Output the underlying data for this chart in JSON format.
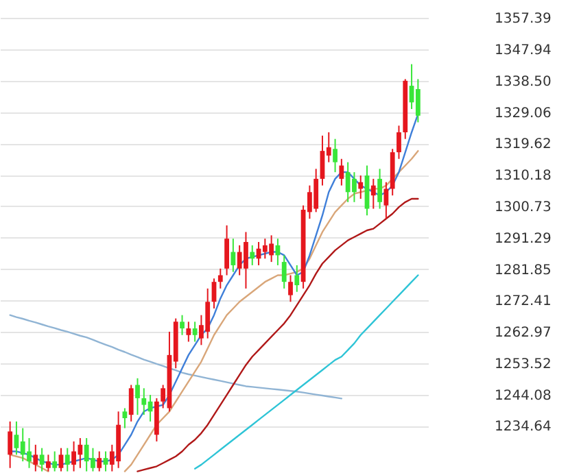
{
  "chart_data": {
    "type": "candlestick",
    "categories": [
      null,
      null,
      null,
      null,
      null,
      null,
      null,
      null,
      null,
      null,
      null,
      null,
      null,
      null,
      null,
      null,
      null,
      null,
      null,
      null,
      null,
      null,
      null,
      null,
      null,
      null,
      null,
      null,
      null,
      null,
      null,
      null,
      null,
      null,
      null,
      null,
      null,
      null,
      null,
      null,
      null,
      null,
      null,
      null,
      null,
      null,
      null,
      null,
      null,
      null,
      null,
      null,
      null,
      null,
      null,
      null,
      null,
      null,
      null,
      null,
      null,
      null,
      null,
      null,
      null
    ],
    "ohlc": [
      [
        1226,
        1236,
        1222,
        1233
      ],
      [
        1232,
        1236,
        1226,
        1228
      ],
      [
        1230,
        1234,
        1224,
        1226
      ],
      [
        1227,
        1231,
        1222,
        1224
      ],
      [
        1223,
        1229,
        1221,
        1226
      ],
      [
        1226,
        1228,
        1221,
        1223
      ],
      [
        1222,
        1226,
        1221,
        1224
      ],
      [
        1224,
        1227,
        1221,
        1222
      ],
      [
        1222,
        1228,
        1221,
        1226
      ],
      [
        1226,
        1228,
        1221,
        1223
      ],
      [
        1223,
        1230,
        1221,
        1227
      ],
      [
        1226,
        1231,
        1222,
        1229
      ],
      [
        1229,
        1231,
        1221,
        1224
      ],
      [
        1225,
        1228,
        1221,
        1222
      ],
      [
        1222,
        1227,
        1221,
        1225
      ],
      [
        1225,
        1227,
        1221,
        1223
      ],
      [
        1223,
        1229,
        1221,
        1227
      ],
      [
        1224,
        1239,
        1222,
        1235
      ],
      [
        1239,
        1240,
        1234,
        1237
      ],
      [
        1238,
        1247,
        1236,
        1246
      ],
      [
        1247,
        1249,
        1238,
        1243
      ],
      [
        1243,
        1246,
        1238,
        1241
      ],
      [
        1242,
        1244,
        1236,
        1239
      ],
      [
        1232,
        1243,
        1230,
        1242
      ],
      [
        1242,
        1247,
        1240,
        1246
      ],
      [
        1240,
        1263,
        1239,
        1256
      ],
      [
        1254,
        1267,
        1252,
        1266
      ],
      [
        1266,
        1268,
        1262,
        1264
      ],
      [
        1262,
        1266,
        1260,
        1264
      ],
      [
        1264,
        1266,
        1260,
        1262
      ],
      [
        1261,
        1268,
        1259,
        1265
      ],
      [
        1263,
        1276,
        1261,
        1272
      ],
      [
        1272,
        1279,
        1270,
        1278
      ],
      [
        1278,
        1282,
        1276,
        1280
      ],
      [
        1282,
        1295,
        1280,
        1291
      ],
      [
        1287,
        1291,
        1281,
        1283
      ],
      [
        1282,
        1289,
        1280,
        1287
      ],
      [
        1282,
        1293,
        1276,
        1290
      ],
      [
        1287,
        1289,
        1283,
        1285
      ],
      [
        1285,
        1290,
        1283,
        1288
      ],
      [
        1287,
        1291,
        1285,
        1289
      ],
      [
        1286,
        1292,
        1284,
        1289.5
      ],
      [
        1289,
        1291,
        1283,
        1286
      ],
      [
        1284,
        1286,
        1276,
        1278
      ],
      [
        1274,
        1280,
        1272,
        1278
      ],
      [
        1280,
        1283,
        1275,
        1277
      ],
      [
        1278,
        1301,
        1276,
        1299.7
      ],
      [
        1299,
        1307,
        1297,
        1305
      ],
      [
        1300,
        1312,
        1299,
        1309
      ],
      [
        1309,
        1322,
        1307,
        1317.4
      ],
      [
        1316,
        1323,
        1314,
        1318.5
      ],
      [
        1318,
        1321,
        1311,
        1314
      ],
      [
        1309,
        1315,
        1307,
        1313
      ],
      [
        1311,
        1314,
        1302,
        1305
      ],
      [
        1309,
        1311,
        1302,
        1305
      ],
      [
        1306,
        1310,
        1303,
        1308
      ],
      [
        1310,
        1313,
        1298,
        1300
      ],
      [
        1304,
        1309,
        1300,
        1307
      ],
      [
        1309,
        1312,
        1300,
        1302
      ],
      [
        1301,
        1308,
        1297,
        1306
      ],
      [
        1306,
        1318,
        1304,
        1317
      ],
      [
        1317,
        1325,
        1315,
        1323
      ],
      [
        1323,
        1339,
        1321,
        1338.5
      ],
      [
        1337,
        1343.5,
        1330,
        1332
      ],
      [
        1336,
        1339,
        1326,
        1328
      ]
    ],
    "colors": [
      "#e5171e",
      "#39e639",
      "#39e639",
      "#39e639",
      "#e5171e",
      "#39e639",
      "#e5171e",
      "#39e639",
      "#e5171e",
      "#39e639",
      "#e5171e",
      "#e5171e",
      "#39e639",
      "#39e639",
      "#e5171e",
      "#39e639",
      "#e5171e",
      "#e5171e",
      "#39e639",
      "#e5171e",
      "#39e639",
      "#39e639",
      "#39e639",
      "#e5171e",
      "#e5171e",
      "#e5171e",
      "#e5171e",
      "#39e639",
      "#e5171e",
      "#39e639",
      "#e5171e",
      "#e5171e",
      "#e5171e",
      "#e5171e",
      "#e5171e",
      "#39e639",
      "#e5171e",
      "#e5171e",
      "#39e639",
      "#e5171e",
      "#e5171e",
      "#e5171e",
      "#39e639",
      "#39e639",
      "#e5171e",
      "#39e639",
      "#e5171e",
      "#e5171e",
      "#e5171e",
      "#e5171e",
      "#e5171e",
      "#39e639",
      "#e5171e",
      "#39e639",
      "#39e639",
      "#e5171e",
      "#39e639",
      "#e5171e",
      "#39e639",
      "#e5171e",
      "#e5171e",
      "#e5171e",
      "#e5171e",
      "#39e639",
      "#39e639"
    ],
    "series": [
      {
        "type": "line",
        "color": "#90b4d4",
        "values": [
          1268,
          1267.4,
          1266.9,
          1266.3,
          1265.8,
          1265.2,
          1264.6,
          1264.1,
          1263.5,
          1263,
          1262.4,
          1261.8,
          1261.3,
          1260.6,
          1259.8,
          1259.1,
          1258.4,
          1257.6,
          1256.9,
          1256.1,
          1255.4,
          1254.6,
          1254,
          1253.3,
          1252.7,
          1252,
          1251.4,
          1250.7,
          1250.2,
          1249.8,
          1249.4,
          1249,
          1248.6,
          1248.2,
          1247.8,
          1247.4,
          1247,
          1246.6,
          1246.4,
          1246.2,
          1246,
          1245.8,
          1245.6,
          1245.4,
          1245.2,
          1245,
          1244.7,
          1244.4,
          1244.1,
          1243.8,
          1243.5,
          1243.2,
          1242.9,
          null,
          null,
          null,
          null,
          null,
          null,
          null,
          null,
          null,
          null,
          null,
          null
        ]
      },
      {
        "type": "line",
        "color": "#2ec4d6",
        "values": [
          null,
          null,
          null,
          null,
          null,
          null,
          null,
          null,
          null,
          null,
          null,
          null,
          null,
          null,
          null,
          null,
          null,
          null,
          null,
          null,
          null,
          null,
          null,
          null,
          null,
          null,
          null,
          null,
          null,
          1221.8,
          1223,
          1224.5,
          1226,
          1227.5,
          1229,
          1230.5,
          1232,
          1233.5,
          1235,
          1236.5,
          1238,
          1239.5,
          1241,
          1242.5,
          1244,
          1245.5,
          1247,
          1248.5,
          1250,
          1251.5,
          1253,
          1254.5,
          1255.5,
          1257.5,
          1259.5,
          1262,
          1264,
          1266,
          1268,
          1270,
          1272,
          1274,
          1276,
          1278,
          1280
        ]
      },
      {
        "type": "line",
        "color": "#b01818",
        "values": [
          null,
          null,
          null,
          null,
          null,
          null,
          null,
          null,
          null,
          null,
          null,
          null,
          null,
          null,
          null,
          null,
          null,
          null,
          null,
          null,
          1221,
          1221.5,
          1222,
          1222.5,
          1223.5,
          1224.5,
          1225.5,
          1227,
          1229,
          1230.5,
          1232.5,
          1235,
          1238,
          1241,
          1244,
          1247,
          1250,
          1253,
          1255.5,
          1257.5,
          1259.5,
          1261.5,
          1263.5,
          1265.5,
          1268,
          1271,
          1274,
          1277,
          1280.5,
          1283.5,
          1285.5,
          1287.5,
          1289,
          1290.5,
          1291.5,
          1292.5,
          1293.5,
          1294,
          1295.5,
          1297,
          1298.5,
          1300.5,
          1302,
          1303,
          1303
        ]
      },
      {
        "type": "line",
        "color": "#d9a679",
        "values": [
          1226,
          1225.5,
          1225,
          1224,
          1223,
          1222,
          1221,
          null,
          null,
          null,
          null,
          null,
          null,
          null,
          null,
          null,
          null,
          null,
          1221,
          1223,
          1226,
          1229,
          1232,
          1235,
          1237,
          1239,
          1242,
          1245,
          1248,
          1251,
          1254,
          1258,
          1262,
          1265,
          1268,
          1270,
          1272,
          1273.5,
          1275,
          1276.5,
          1278,
          1279,
          1280,
          1280,
          1280.5,
          1281,
          1282,
          1285,
          1289,
          1293,
          1296,
          1299,
          1301,
          1303,
          1304.5,
          1305,
          1305.5,
          1306,
          1306,
          1307,
          1309,
          1311,
          1313,
          1315,
          1317.4
        ]
      },
      {
        "type": "line",
        "color": "#3f7fd9",
        "values": [
          1227,
          1227,
          1226.5,
          1226,
          1225,
          1224,
          1223.5,
          1223,
          1223,
          1223.5,
          1224,
          1224.5,
          1225,
          1224.5,
          1224,
          1224,
          1224.5,
          1226,
          1229,
          1232,
          1236,
          1239,
          1240,
          1240.5,
          1241,
          1244,
          1248,
          1252,
          1256,
          1259,
          1262,
          1264,
          1268,
          1273,
          1277,
          1280,
          1283,
          1285,
          1285.5,
          1286,
          1286.5,
          1287,
          1287,
          1286,
          1283,
          1280,
          1281,
          1286,
          1292,
          1298,
          1305,
          1309,
          1311,
          1311,
          1309,
          1307,
          1306,
          1305,
          1304,
          1305,
          1307,
          1311,
          1317,
          1323,
          1328.5
        ]
      }
    ],
    "ylim": [
      1220.5,
      1362.8
    ],
    "yticks": [
      1357.39,
      1347.94,
      {
        "value": 1338.5,
        "label": "1338.50"
      },
      1329.06,
      1319.62,
      1310.18,
      1300.73,
      1291.29,
      1281.85,
      1272.41,
      1262.97,
      1253.52,
      1244.08,
      1234.64
    ],
    "grid": "y",
    "tick_labels": "y"
  }
}
